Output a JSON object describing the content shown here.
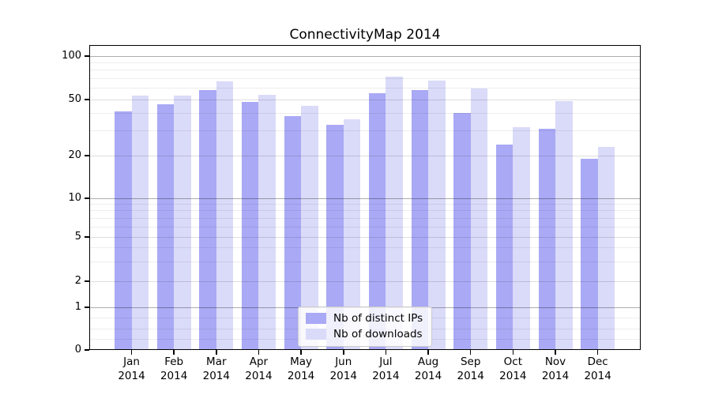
{
  "chart_data": {
    "type": "bar",
    "title": "ConnectivityMap 2014",
    "categories": [
      "Jan 2014",
      "Feb 2014",
      "Mar 2014",
      "Apr 2014",
      "May 2014",
      "Jun 2014",
      "Jul 2014",
      "Aug 2014",
      "Sep 2014",
      "Oct 2014",
      "Nov 2014",
      "Dec 2014"
    ],
    "series": [
      {
        "name": "Nb of distinct IPs",
        "key": "distinct-ips",
        "color": "#a9a9f5",
        "values": [
          41,
          46,
          58,
          48,
          38,
          33,
          55,
          58,
          40,
          24,
          31,
          19
        ]
      },
      {
        "name": "Nb of downloads",
        "key": "downloads",
        "color": "#dadaf9",
        "values": [
          53,
          53,
          67,
          54,
          45,
          36,
          72,
          68,
          60,
          32,
          49,
          23
        ]
      }
    ],
    "xlabel": "",
    "ylabel": "",
    "yscale": "symlog",
    "ylim": [
      0,
      115
    ],
    "y_tick_labels": [
      100,
      50,
      20,
      10,
      5,
      2,
      1,
      0
    ],
    "y_major_gridlines": [
      100,
      10,
      1
    ],
    "y_mid_gridlines": [
      50,
      20,
      5,
      2
    ],
    "y_minor_gridlines": [
      90,
      80,
      70,
      60,
      40,
      30,
      9,
      8,
      7,
      6,
      4,
      3,
      0.75,
      0.5,
      0.25
    ],
    "grid": true,
    "legend": {
      "position": "lower center",
      "entries": [
        "Nb of distinct IPs",
        "Nb of downloads"
      ]
    }
  }
}
